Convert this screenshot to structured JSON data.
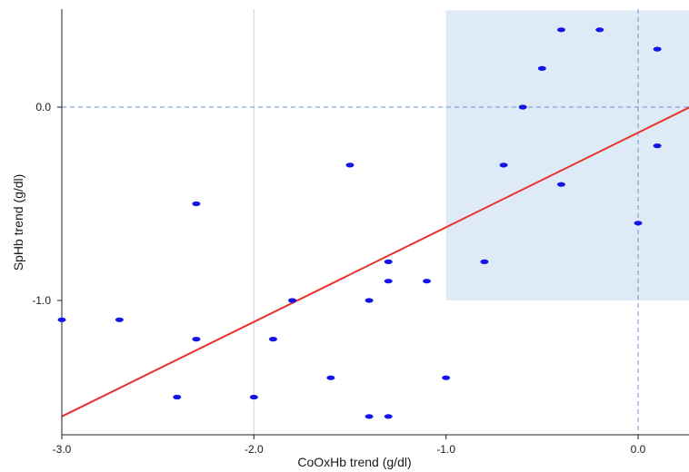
{
  "chart_data": {
    "type": "scatter",
    "title": "",
    "xlabel": "CoOxHb trend (g/dl)",
    "ylabel": "SpHb trend (g/dl)",
    "xlim": [
      -3.0,
      0.27
    ],
    "ylim": [
      -1.7,
      0.5
    ],
    "x_ticks": [
      -3.0,
      -2.0,
      -1.0,
      0.0
    ],
    "x_tick_labels": [
      "-3.0",
      "-2.0",
      "-1.0",
      "0.0"
    ],
    "y_ticks": [
      0.0,
      -1.0
    ],
    "y_tick_labels": [
      "0.0",
      "-1.0"
    ],
    "grid": "vertical gridline at x=-2.0 only",
    "reference_lines": [
      {
        "axis": "y",
        "value": 0.0,
        "style": "dashed"
      },
      {
        "axis": "x",
        "value": 0.0,
        "style": "dashed"
      }
    ],
    "shaded_region": {
      "x": [
        -1.0,
        0.27
      ],
      "y": [
        -1.0,
        0.5
      ],
      "color": "#deeaf6"
    },
    "regression_line": {
      "x": [
        -3.0,
        0.27
      ],
      "y": [
        -1.6,
        0.0
      ],
      "color": "#e8312a"
    },
    "points": [
      {
        "x": -3.0,
        "y": -1.1
      },
      {
        "x": -2.7,
        "y": -1.1
      },
      {
        "x": -2.4,
        "y": -1.5
      },
      {
        "x": -2.3,
        "y": -0.5
      },
      {
        "x": -2.3,
        "y": -1.2
      },
      {
        "x": -2.0,
        "y": -1.5
      },
      {
        "x": -1.9,
        "y": -1.2
      },
      {
        "x": -1.8,
        "y": -1.0
      },
      {
        "x": -1.6,
        "y": -1.4
      },
      {
        "x": -1.5,
        "y": -0.3
      },
      {
        "x": -1.4,
        "y": -1.0
      },
      {
        "x": -1.4,
        "y": -1.6
      },
      {
        "x": -1.3,
        "y": -0.8
      },
      {
        "x": -1.3,
        "y": -0.9
      },
      {
        "x": -1.3,
        "y": -1.6
      },
      {
        "x": -1.1,
        "y": -0.9
      },
      {
        "x": -1.0,
        "y": -1.4
      },
      {
        "x": -0.8,
        "y": -0.8
      },
      {
        "x": -0.7,
        "y": -0.3
      },
      {
        "x": -0.6,
        "y": 0.0
      },
      {
        "x": -0.5,
        "y": 0.2
      },
      {
        "x": -0.4,
        "y": 0.4
      },
      {
        "x": -0.4,
        "y": -0.4
      },
      {
        "x": -0.2,
        "y": 0.4
      },
      {
        "x": 0.0,
        "y": -0.6
      },
      {
        "x": 0.1,
        "y": 0.3
      },
      {
        "x": 0.1,
        "y": -0.2
      }
    ],
    "colors": {
      "points": "#1414e6",
      "regression": "#e8312a",
      "shade": "#deeaf6",
      "reference": "#6f93cf",
      "grid": "#c7d9ee",
      "axis": "#222222"
    }
  }
}
